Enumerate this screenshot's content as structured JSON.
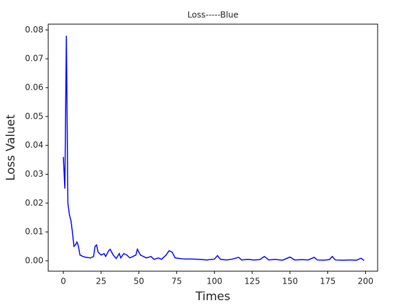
{
  "chart_data": {
    "type": "line",
    "title": "Loss-----Blue",
    "x_label": "Times",
    "y_label": "Loss Valuet",
    "x": [
      0,
      1,
      2,
      3,
      4,
      5,
      6,
      7,
      8,
      9,
      10,
      11,
      13,
      15,
      18,
      20,
      21,
      22,
      23,
      25,
      27,
      28,
      30,
      31,
      33,
      35,
      37,
      38,
      40,
      42,
      44,
      46,
      48,
      49,
      51,
      53,
      55,
      58,
      60,
      63,
      65,
      68,
      70,
      72,
      74,
      77,
      80,
      85,
      90,
      95,
      100,
      102,
      104,
      108,
      112,
      116,
      118,
      122,
      126,
      130,
      133,
      136,
      140,
      145,
      150,
      153,
      158,
      162,
      166,
      168,
      172,
      176,
      178,
      180,
      185,
      190,
      194,
      197,
      199
    ],
    "series": [
      {
        "name": "Loss",
        "color": "#0000ff",
        "values": [
          0.036,
          0.025,
          0.078,
          0.02,
          0.016,
          0.014,
          0.01,
          0.005,
          0.0055,
          0.0065,
          0.005,
          0.002,
          0.0015,
          0.0012,
          0.001,
          0.0015,
          0.005,
          0.0055,
          0.003,
          0.002,
          0.0025,
          0.0015,
          0.0035,
          0.004,
          0.002,
          0.0008,
          0.0025,
          0.001,
          0.0025,
          0.002,
          0.001,
          0.0015,
          0.002,
          0.004,
          0.002,
          0.0015,
          0.001,
          0.0015,
          0.0005,
          0.001,
          0.0005,
          0.002,
          0.0035,
          0.003,
          0.001,
          0.0008,
          0.0006,
          0.0006,
          0.0005,
          0.0003,
          0.0006,
          0.0018,
          0.0005,
          0.0003,
          0.0006,
          0.0012,
          0.0003,
          0.0005,
          0.0003,
          0.0004,
          0.0015,
          0.0003,
          0.0005,
          0.0002,
          0.0013,
          0.0003,
          0.0004,
          0.0003,
          0.0012,
          0.0003,
          0.0002,
          0.0004,
          0.0015,
          0.0003,
          0.0002,
          0.0003,
          0.0002,
          0.0009,
          0.0001
        ]
      }
    ],
    "xlim": [
      -10,
      208
    ],
    "ylim": [
      -0.0036,
      0.082
    ],
    "xticks": [
      0,
      25,
      50,
      75,
      100,
      125,
      150,
      175,
      200
    ],
    "yticks": [
      {
        "value": 0,
        "label": "0.00"
      },
      {
        "value": 0.01,
        "label": "0.01"
      },
      {
        "value": 0.02,
        "label": "0.02"
      },
      {
        "value": 0.03,
        "label": "0.03"
      },
      {
        "value": 0.04,
        "label": "0.04"
      },
      {
        "value": 0.05,
        "label": "0.05"
      },
      {
        "value": 0.06,
        "label": "0.06"
      },
      {
        "value": 0.07,
        "label": "0.07"
      },
      {
        "value": 0.08,
        "label": "0.08"
      }
    ],
    "grid": false
  }
}
